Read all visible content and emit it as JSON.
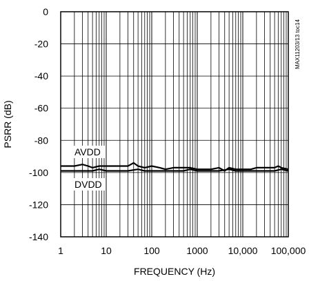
{
  "chart_data": {
    "type": "line",
    "title": "",
    "xlabel": "FREQUENCY (Hz)",
    "ylabel": "PSRR (dB)",
    "xscale": "log",
    "xlim": [
      1,
      100000
    ],
    "ylim": [
      -140,
      0
    ],
    "grid": true,
    "x_tick_labels": [
      "1",
      "10",
      "100",
      "1000",
      "10,000",
      "100,000"
    ],
    "y_tick_labels": [
      "0",
      "-20",
      "-40",
      "-60",
      "-80",
      "-100",
      "-120",
      "-140"
    ],
    "side_tag": "MAX11203/13 toc14",
    "series": [
      {
        "name": "AVDD",
        "x": [
          1,
          2,
          3,
          4,
          5,
          7,
          10,
          15,
          20,
          30,
          40,
          50,
          70,
          100,
          150,
          200,
          300,
          500,
          700,
          1000,
          1500,
          2000,
          3000,
          4000,
          5000,
          7000,
          10000,
          15000,
          20000,
          30000,
          50000,
          60000,
          70000,
          100000
        ],
        "y": [
          -96,
          -96,
          -95,
          -96,
          -97,
          -96,
          -96,
          -96,
          -96,
          -96,
          -94,
          -96,
          -97,
          -96,
          -97,
          -98,
          -97,
          -97,
          -97,
          -98,
          -98,
          -98,
          -97,
          -99,
          -97,
          -98,
          -98,
          -98,
          -97,
          -97,
          -97,
          -96,
          -97,
          -98
        ]
      },
      {
        "name": "DVDD",
        "x": [
          1,
          2,
          3,
          5,
          7,
          10,
          20,
          30,
          50,
          70,
          100,
          200,
          300,
          500,
          700,
          1000,
          2000,
          3000,
          5000,
          7000,
          10000,
          15000,
          20000,
          30000,
          50000,
          70000,
          100000
        ],
        "y": [
          -99,
          -99,
          -99,
          -99,
          -98,
          -99,
          -99,
          -99,
          -98,
          -99,
          -99,
          -99,
          -99,
          -99,
          -98,
          -99,
          -99,
          -99,
          -98,
          -99,
          -99,
          -99,
          -99,
          -99,
          -99,
          -98,
          -99
        ]
      }
    ]
  }
}
